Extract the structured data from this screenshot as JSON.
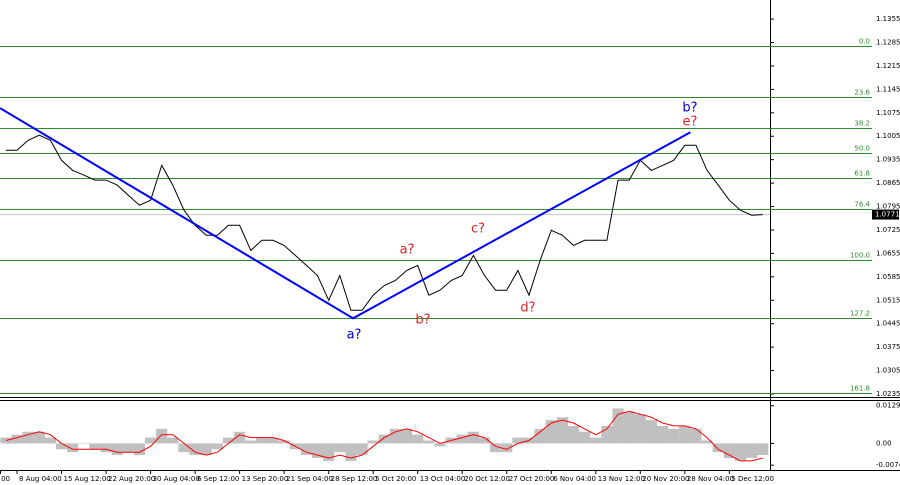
{
  "chart_data": [
    {
      "type": "price",
      "categories": [
        "00",
        null,
        null,
        null,
        "8 Aug 04:00",
        null,
        null,
        null,
        "15 Aug 12:00",
        null,
        null,
        null,
        "22 Aug 20:00",
        null,
        null,
        null,
        "30 Aug 04:00",
        null,
        null,
        null,
        "6 Sep 12:00",
        null,
        null,
        null,
        "13 Sep 20:00",
        null,
        null,
        null,
        "21 Sep 04:00",
        null,
        null,
        null,
        "28 Sep 12:00",
        null,
        null,
        null,
        "5 Oct 20:00",
        null,
        null,
        null,
        "13 Oct 04:00",
        null,
        null,
        null,
        "20 Oct 12:00",
        null,
        null,
        null,
        "27 Oct 20:00",
        null,
        null,
        null,
        "6 Nov 04:00",
        null,
        null,
        null,
        "13 Nov 12:00",
        null,
        null,
        null,
        "20 Nov 20:00",
        null,
        null,
        null,
        "28 Nov 04:00",
        null,
        null,
        null,
        "5 Dec 12:00",
        null,
        null,
        null
      ],
      "values": [
        null,
        null,
        null,
        1.0963,
        1.0963,
        1.0993,
        1.1008,
        1.0993,
        1.0933,
        1.0903,
        1.0889,
        1.0874,
        1.0874,
        1.0859,
        1.0829,
        1.0799,
        1.0814,
        1.0918,
        1.0859,
        1.0784,
        1.0739,
        1.0709,
        1.0709,
        1.0739,
        1.0739,
        1.0664,
        1.0694,
        1.0694,
        1.0679,
        1.0649,
        1.0619,
        1.0589,
        1.0515,
        1.0589,
        1.0485,
        1.0485,
        1.053,
        1.0559,
        1.0574,
        1.0604,
        1.0619,
        1.053,
        1.0545,
        1.0574,
        1.0589,
        1.0649,
        1.0589,
        1.0545,
        1.0545,
        1.0604,
        1.053,
        1.0634,
        1.0724,
        1.0709,
        1.0679,
        1.0694,
        1.0694,
        1.0694,
        1.0874,
        1.0874,
        1.0933,
        1.0903,
        1.0918,
        1.0933,
        1.0978,
        1.0978,
        1.0903,
        1.0859,
        1.0814,
        1.0784,
        1.0769,
        1.0771
      ],
      "color": "#000000",
      "ylim": [
        1.0226,
        1.1412
      ],
      "yticks": [
        1.1355,
        1.1285,
        1.1215,
        1.1145,
        1.1075,
        1.1005,
        1.0935,
        1.0865,
        1.0795,
        1.0725,
        1.0655,
        1.0585,
        1.0515,
        1.0445,
        1.0375,
        1.0305,
        1.0235
      ],
      "last_price": 1.0771,
      "fib_color": "#2e8b2e",
      "fib_levels": [
        {
          "label": "0.0",
          "value": 1.1274
        },
        {
          "label": "23.6",
          "value": 1.1122
        },
        {
          "label": "38.2",
          "value": 1.1029
        },
        {
          "label": "50.0",
          "value": 1.0954
        },
        {
          "label": "61.8",
          "value": 1.088
        },
        {
          "label": "76.4",
          "value": 1.0787
        },
        {
          "label": "100.0",
          "value": 1.0634
        },
        {
          "label": "127.2",
          "value": 1.0461
        },
        {
          "label": "161.8",
          "value": 1.0239
        }
      ],
      "wave": {
        "color": "#0000ff",
        "x": [
          2.47,
          34.2,
          64.5
        ],
        "values": [
          1.1089,
          1.0461,
          1.1017
        ]
      },
      "annotations": [
        {
          "text": "a?",
          "color": "#0000cc"
        },
        {
          "text": "b?",
          "color": "#0000cc"
        },
        {
          "text": "e?",
          "color": "#dd2222"
        },
        {
          "text": "a?",
          "color": "#dd2222"
        },
        {
          "text": "b?",
          "color": "#dd2222"
        },
        {
          "text": "c?",
          "color": "#dd2222"
        },
        {
          "text": "d?",
          "color": "#dd2222"
        }
      ]
    },
    {
      "type": "oscillator",
      "ylim": [
        -0.00912,
        0.0149
      ],
      "yticks": [
        0.01293,
        {
          "value": 0,
          "label": "0.00"
        },
        -0.00747
      ],
      "histogram": {
        "color": "#c0c0c0",
        "values": [
          null,
          null,
          null,
          0.002,
          0.003,
          0.004,
          0.004,
          0.002,
          -0.002,
          -0.003,
          0,
          -0.002,
          -0.003,
          -0.004,
          -0.003,
          -0.004,
          0.002,
          0.005,
          0.002,
          -0.003,
          -0.004,
          -0.004,
          -0.002,
          0.002,
          0.004,
          0.001,
          0.002,
          0.002,
          0.001,
          -0.002,
          -0.004,
          -0.005,
          -0.006,
          -0.003,
          -0.006,
          -0.004,
          0.001,
          0.003,
          0.005,
          0.005,
          0.003,
          0.001,
          -0.001,
          0.002,
          0.003,
          0.004,
          0.002,
          -0.003,
          -0.003,
          0.002,
          0.002,
          0.005,
          0.008,
          0.009,
          0.006,
          0.004,
          0.002,
          0.006,
          0.012,
          0.011,
          0.01,
          0.008,
          0.006,
          0.005,
          0.006,
          0.005,
          0.001,
          -0.003,
          -0.005,
          -0.006,
          -0.005,
          -0.004
        ]
      },
      "signal": {
        "color": "#ff0000",
        "values": [
          null,
          null,
          null,
          0.001,
          0.002,
          0.003,
          0.004,
          0.003,
          0,
          -0.002,
          -0.002,
          -0.002,
          -0.002,
          -0.003,
          -0.003,
          -0.003,
          -0.001,
          0.003,
          0.003,
          0,
          -0.003,
          -0.004,
          -0.003,
          0,
          0.003,
          0.002,
          0.002,
          0.002,
          0.001,
          -0.001,
          -0.003,
          -0.004,
          -0.005,
          -0.004,
          -0.005,
          -0.004,
          -0.001,
          0.002,
          0.004,
          0.005,
          0.004,
          0.002,
          0,
          0.001,
          0.002,
          0.003,
          0.002,
          -0.001,
          -0.002,
          0,
          0.001,
          0.004,
          0.007,
          0.008,
          0.007,
          0.005,
          0.003,
          0.005,
          0.01,
          0.011,
          0.01,
          0.009,
          0.007,
          0.006,
          0.006,
          0.005,
          0.002,
          -0.002,
          -0.004,
          -0.006,
          -0.006,
          -0.005
        ]
      }
    }
  ]
}
